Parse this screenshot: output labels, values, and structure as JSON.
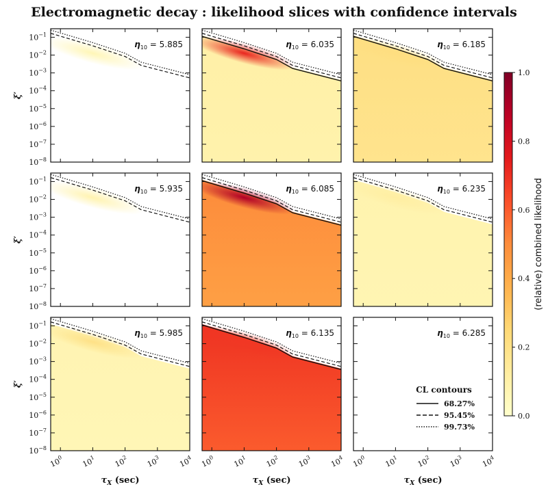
{
  "figure": {
    "title": "Electromagnetic decay :  likelihood slices with confidence intervals"
  },
  "chart_data": {
    "type": "heatmap",
    "layout": "3x3 small multiples",
    "xlabel_var": "τ",
    "xlabel_sub": "X",
    "xlabel_unit": "(sec)",
    "ylabel_var": "ξ",
    "ylabel_prime": "′",
    "x_scale": "log",
    "y_scale": "log",
    "xlim": [
      0.5,
      10000
    ],
    "ylim": [
      1e-08,
      0.3
    ],
    "x_ticks": [
      {
        "base": "10",
        "exp": "0",
        "log": 0
      },
      {
        "base": "10",
        "exp": "1",
        "log": 1
      },
      {
        "base": "10",
        "exp": "2",
        "log": 2
      },
      {
        "base": "10",
        "exp": "3",
        "log": 3
      },
      {
        "base": "10",
        "exp": "4",
        "log": 4
      }
    ],
    "y_ticks": [
      {
        "base": "10",
        "exp": "−1",
        "log": -1
      },
      {
        "base": "10",
        "exp": "−2",
        "log": -2
      },
      {
        "base": "10",
        "exp": "−3",
        "log": -3
      },
      {
        "base": "10",
        "exp": "−4",
        "log": -4
      },
      {
        "base": "10",
        "exp": "−5",
        "log": -5
      },
      {
        "base": "10",
        "exp": "−6",
        "log": -6
      },
      {
        "base": "10",
        "exp": "−7",
        "log": -7
      },
      {
        "base": "10",
        "exp": "−8",
        "log": -8
      }
    ],
    "eta_symbol": "η",
    "eta_sub": "10",
    "panels": [
      {
        "eta": "5.885",
        "fill_level": 0.0,
        "peak": 0.06
      },
      {
        "eta": "6.035",
        "fill_level": 0.1,
        "peak": 0.72
      },
      {
        "eta": "6.185",
        "fill_level": 0.2,
        "peak": 0.22
      },
      {
        "eta": "5.935",
        "fill_level": 0.0,
        "peak": 0.08
      },
      {
        "eta": "6.085",
        "fill_level": 0.48,
        "peak": 0.9
      },
      {
        "eta": "6.235",
        "fill_level": 0.08,
        "peak": 0.12
      },
      {
        "eta": "5.985",
        "fill_level": 0.07,
        "peak": 0.2
      },
      {
        "eta": "6.135",
        "fill_level": 0.66,
        "peak": 0.68
      },
      {
        "eta": "6.285",
        "fill_level": 0.0,
        "peak": 0.0
      }
    ],
    "colorbar": {
      "label": "(relative) combined likelihood",
      "range": [
        0.0,
        1.0
      ],
      "ticks": [
        "0.0",
        "0.2",
        "0.4",
        "0.6",
        "0.8",
        "1.0"
      ],
      "colormap": "YlOrRd",
      "colors": [
        "#ffffcc",
        "#ffeda0",
        "#fed976",
        "#feb24c",
        "#fd8d3c",
        "#fc4e2a",
        "#e31a1c",
        "#bd0026",
        "#800026"
      ]
    },
    "legend": {
      "title": "CL contours",
      "position": "lower-right",
      "entries": [
        {
          "label": "68.27%",
          "style": "solid"
        },
        {
          "label": "95.45%",
          "style": "dashed"
        },
        {
          "label": "99.73%",
          "style": "dotted"
        }
      ]
    }
  }
}
